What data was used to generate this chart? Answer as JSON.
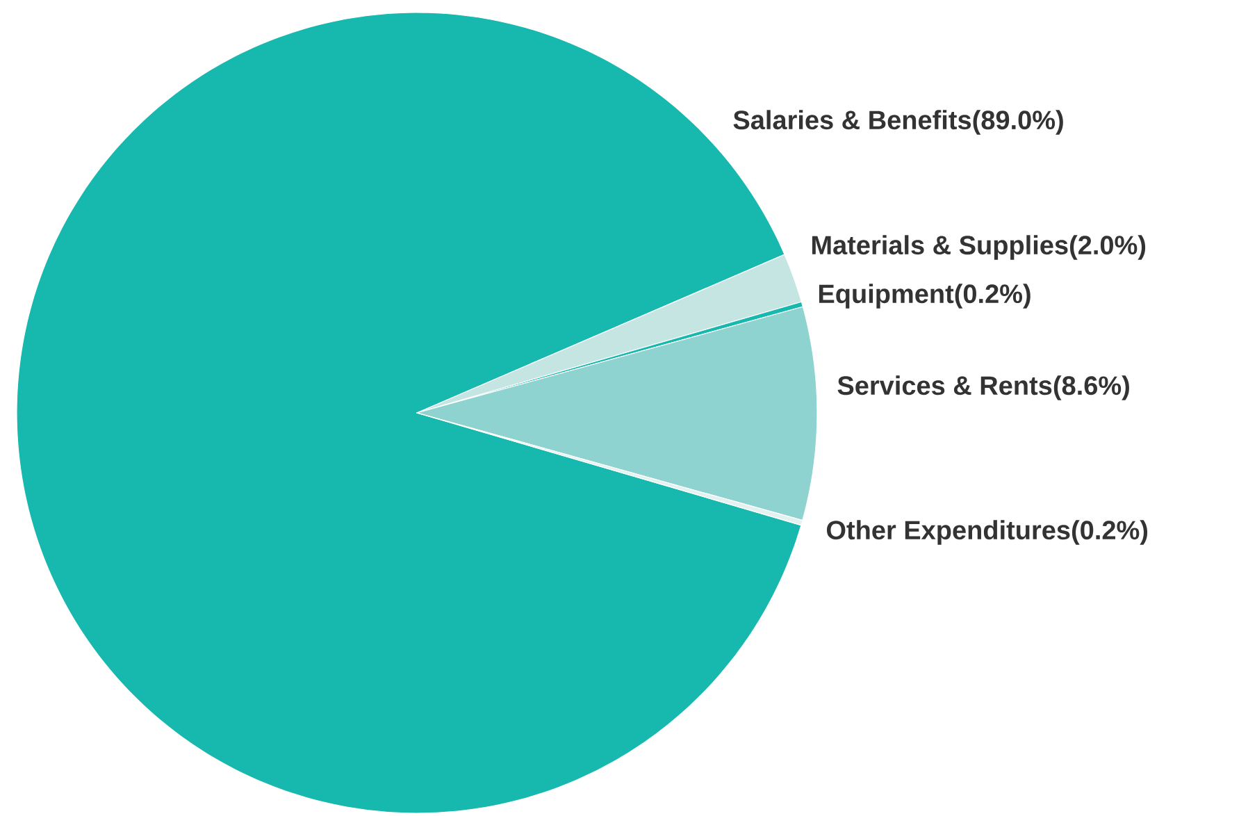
{
  "chart_data": {
    "type": "pie",
    "categories": [
      "Salaries & Benefits",
      "Materials & Supplies",
      "Equipment",
      "Services & Rents",
      "Other Expenditures"
    ],
    "values": [
      89.0,
      2.0,
      0.2,
      8.6,
      0.2
    ],
    "value_labels": [
      "(89.0%)",
      "(2.0%)",
      "(0.2%)",
      "(8.6%)",
      "(0.2%)"
    ],
    "colors": [
      "#17b8ae",
      "#c5e5e3",
      "#17b8ae",
      "#8ed3cf",
      "#e3f2f1"
    ]
  }
}
